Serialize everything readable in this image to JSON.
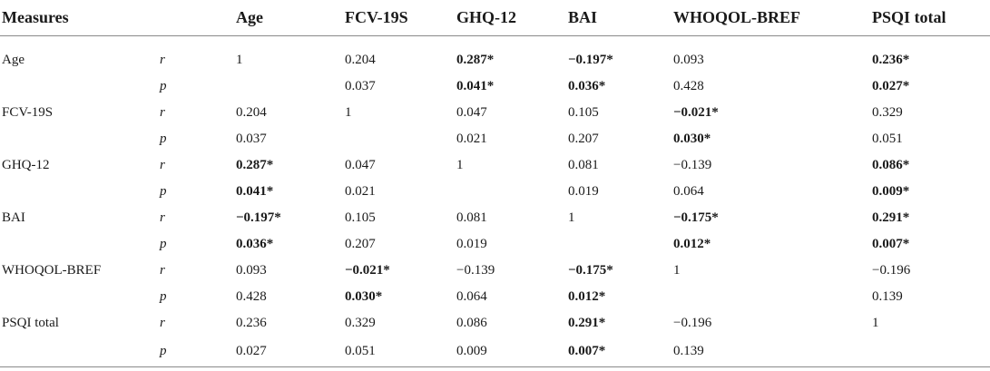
{
  "table": {
    "headers": [
      "Measures",
      "",
      "Age",
      "FCV-19S",
      "GHQ-12",
      "BAI",
      "WHOQOL-BREF",
      "PSQI total"
    ],
    "rows": [
      {
        "measure": "Age",
        "stat": "r",
        "cells": [
          {
            "v": "1",
            "b": false
          },
          {
            "v": "0.204",
            "b": false
          },
          {
            "v": "0.287*",
            "b": true
          },
          {
            "v": "−0.197*",
            "b": true
          },
          {
            "v": "0.093",
            "b": false
          },
          {
            "v": "0.236*",
            "b": true
          }
        ]
      },
      {
        "measure": "",
        "stat": "p",
        "cells": [
          {
            "v": "",
            "b": false
          },
          {
            "v": "0.037",
            "b": false
          },
          {
            "v": "0.041*",
            "b": true
          },
          {
            "v": "0.036*",
            "b": true
          },
          {
            "v": "0.428",
            "b": false
          },
          {
            "v": "0.027*",
            "b": true
          }
        ]
      },
      {
        "measure": "FCV-19S",
        "stat": "r",
        "cells": [
          {
            "v": "0.204",
            "b": false
          },
          {
            "v": "1",
            "b": false
          },
          {
            "v": "0.047",
            "b": false
          },
          {
            "v": "0.105",
            "b": false
          },
          {
            "v": "−0.021*",
            "b": true
          },
          {
            "v": "0.329",
            "b": false
          }
        ]
      },
      {
        "measure": "",
        "stat": "p",
        "cells": [
          {
            "v": "0.037",
            "b": false
          },
          {
            "v": "",
            "b": false
          },
          {
            "v": "0.021",
            "b": false
          },
          {
            "v": "0.207",
            "b": false
          },
          {
            "v": "0.030*",
            "b": true
          },
          {
            "v": "0.051",
            "b": false
          }
        ]
      },
      {
        "measure": "GHQ-12",
        "stat": "r",
        "cells": [
          {
            "v": "0.287*",
            "b": true
          },
          {
            "v": "0.047",
            "b": false
          },
          {
            "v": "1",
            "b": false
          },
          {
            "v": "0.081",
            "b": false
          },
          {
            "v": "−0.139",
            "b": false
          },
          {
            "v": "0.086*",
            "b": true
          }
        ]
      },
      {
        "measure": "",
        "stat": "p",
        "cells": [
          {
            "v": "0.041*",
            "b": true
          },
          {
            "v": "0.021",
            "b": false
          },
          {
            "v": "",
            "b": false
          },
          {
            "v": "0.019",
            "b": false
          },
          {
            "v": "0.064",
            "b": false
          },
          {
            "v": "0.009*",
            "b": true
          }
        ]
      },
      {
        "measure": "BAI",
        "stat": "r",
        "cells": [
          {
            "v": "−0.197*",
            "b": true
          },
          {
            "v": "0.105",
            "b": false
          },
          {
            "v": "0.081",
            "b": false
          },
          {
            "v": "1",
            "b": false
          },
          {
            "v": "−0.175*",
            "b": true
          },
          {
            "v": "0.291*",
            "b": true
          }
        ]
      },
      {
        "measure": "",
        "stat": "p",
        "cells": [
          {
            "v": "0.036*",
            "b": true
          },
          {
            "v": "0.207",
            "b": false
          },
          {
            "v": "0.019",
            "b": false
          },
          {
            "v": "",
            "b": false
          },
          {
            "v": "0.012*",
            "b": true
          },
          {
            "v": "0.007*",
            "b": true
          }
        ]
      },
      {
        "measure": "WHOQOL-BREF",
        "stat": "r",
        "cells": [
          {
            "v": "0.093",
            "b": false
          },
          {
            "v": "−0.021*",
            "b": true
          },
          {
            "v": "−0.139",
            "b": false
          },
          {
            "v": "−0.175*",
            "b": true
          },
          {
            "v": "1",
            "b": false
          },
          {
            "v": "−0.196",
            "b": false
          }
        ]
      },
      {
        "measure": "",
        "stat": "p",
        "cells": [
          {
            "v": "0.428",
            "b": false
          },
          {
            "v": "0.030*",
            "b": true
          },
          {
            "v": "0.064",
            "b": false
          },
          {
            "v": "0.012*",
            "b": true
          },
          {
            "v": "",
            "b": false
          },
          {
            "v": "0.139",
            "b": false
          }
        ]
      },
      {
        "measure": "PSQI total",
        "stat": "r",
        "cells": [
          {
            "v": "0.236",
            "b": false
          },
          {
            "v": "0.329",
            "b": false
          },
          {
            "v": "0.086",
            "b": false
          },
          {
            "v": "0.291*",
            "b": true
          },
          {
            "v": "−0.196",
            "b": false
          },
          {
            "v": "1",
            "b": false
          }
        ]
      },
      {
        "measure": "",
        "stat": "p",
        "cells": [
          {
            "v": "0.027",
            "b": false
          },
          {
            "v": "0.051",
            "b": false
          },
          {
            "v": "0.009",
            "b": false
          },
          {
            "v": "0.007*",
            "b": true
          },
          {
            "v": "0.139",
            "b": false
          },
          {
            "v": "",
            "b": false
          }
        ]
      }
    ]
  }
}
